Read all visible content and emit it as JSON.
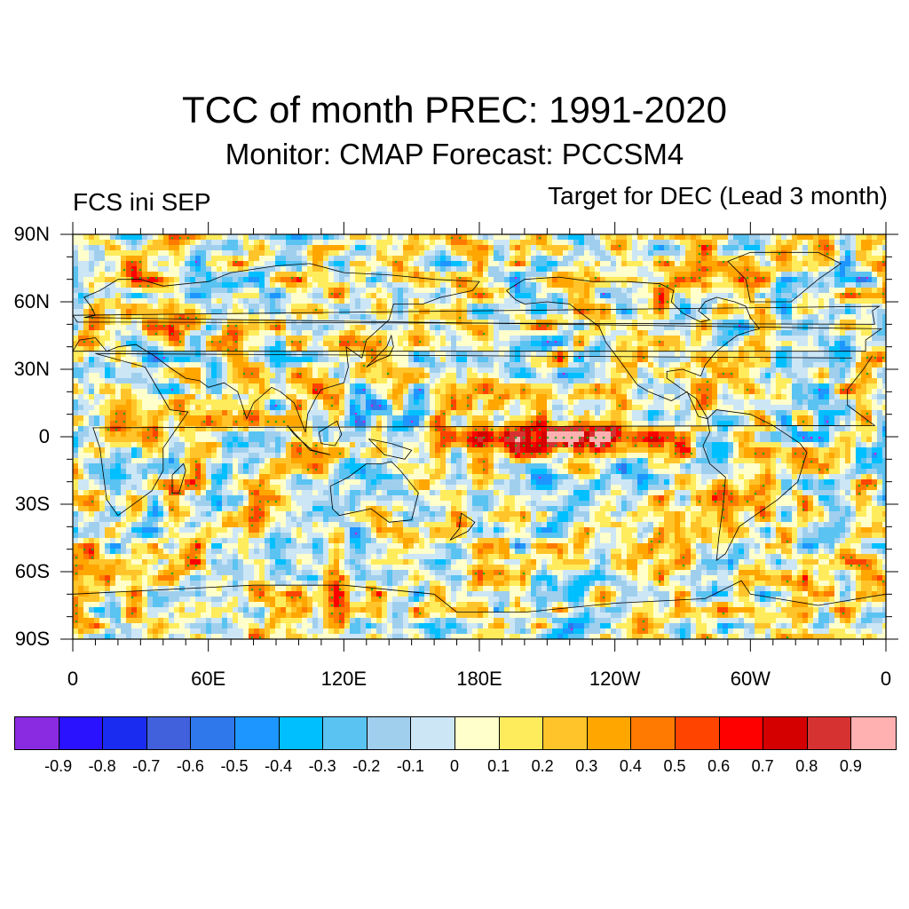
{
  "header": {
    "title": "TCC of month PREC: 1991-2020",
    "subtitle": "Monitor: CMAP   Forecast: PCCSM4",
    "left_label": "FCS ini SEP",
    "right_label": "Target for DEC (Lead 3 month)"
  },
  "map": {
    "lat_labels": [
      "90N",
      "60N",
      "30N",
      "0",
      "30S",
      "60S",
      "90S"
    ],
    "lon_labels": [
      "0",
      "60E",
      "120E",
      "180E",
      "120W",
      "60W",
      "0"
    ],
    "projection": "cylindrical equidistant",
    "lon_range": [
      0,
      360
    ],
    "lat_range": [
      -90,
      90
    ],
    "stipple_color_positive": "#22aa22",
    "stipple_color_negative": "#cc22cc"
  },
  "colorbar": {
    "colors": [
      "#8a2be2",
      "#2a12ff",
      "#1a2cf0",
      "#4060dc",
      "#2e78ec",
      "#1e96ff",
      "#00bfff",
      "#5ac3f2",
      "#a0cfee",
      "#cce6f6",
      "#ffffcc",
      "#ffec5c",
      "#ffc42a",
      "#ffa600",
      "#ff7a00",
      "#ff4400",
      "#ff0000",
      "#d40000",
      "#d63232",
      "#ffb0b0"
    ],
    "labels": [
      "-0.9",
      "-0.8",
      "-0.7",
      "-0.6",
      "-0.5",
      "-0.4",
      "-0.3",
      "-0.2",
      "-0.1",
      "0",
      "0.1",
      "0.2",
      "0.3",
      "0.4",
      "0.5",
      "0.6",
      "0.7",
      "0.8",
      "0.9"
    ]
  }
}
